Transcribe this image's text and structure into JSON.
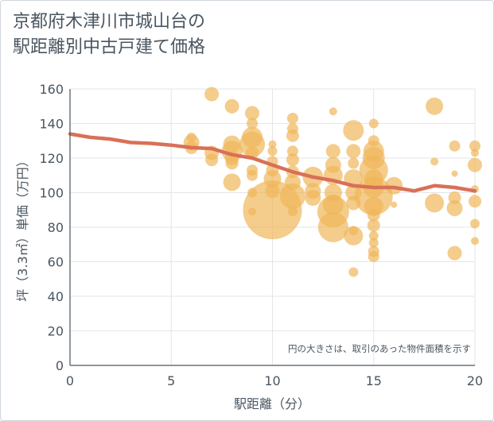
{
  "chart_data": {
    "type": "scatter",
    "title": [
      "京都府木津川市城山台の",
      "駅距離別中古戸建て価格"
    ],
    "xlabel": "駅距離（分）",
    "ylabel": "坪（3.3㎡）単価（万円）",
    "xlim": [
      0,
      20
    ],
    "ylim": [
      0,
      160
    ],
    "xticks": [
      0,
      5,
      10,
      15,
      20
    ],
    "yticks": [
      0,
      20,
      40,
      60,
      80,
      100,
      120,
      140,
      160
    ],
    "note": "円の大きさは、取引のあった物件面積を示す",
    "grid": true,
    "bubble_color": "#f0b75a",
    "line_color": "#d97058",
    "trend_line": [
      {
        "x": 0,
        "y": 134
      },
      {
        "x": 1,
        "y": 132
      },
      {
        "x": 2,
        "y": 131
      },
      {
        "x": 3,
        "y": 129
      },
      {
        "x": 4,
        "y": 128.5
      },
      {
        "x": 5,
        "y": 127.5
      },
      {
        "x": 6,
        "y": 126
      },
      {
        "x": 7,
        "y": 125.5
      },
      {
        "x": 8,
        "y": 122
      },
      {
        "x": 9,
        "y": 120
      },
      {
        "x": 10,
        "y": 116
      },
      {
        "x": 11,
        "y": 112
      },
      {
        "x": 12,
        "y": 109
      },
      {
        "x": 13,
        "y": 107
      },
      {
        "x": 14,
        "y": 104
      },
      {
        "x": 15,
        "y": 103
      },
      {
        "x": 16,
        "y": 103
      },
      {
        "x": 17,
        "y": 101
      },
      {
        "x": 18,
        "y": 104
      },
      {
        "x": 19,
        "y": 103
      },
      {
        "x": 20,
        "y": 101
      }
    ],
    "points": [
      {
        "x": 6,
        "y": 132,
        "s": 6
      },
      {
        "x": 6,
        "y": 129,
        "s": 10
      },
      {
        "x": 6,
        "y": 126,
        "s": 8
      },
      {
        "x": 7,
        "y": 157,
        "s": 9
      },
      {
        "x": 7,
        "y": 123,
        "s": 9
      },
      {
        "x": 7,
        "y": 119,
        "s": 8
      },
      {
        "x": 8,
        "y": 150,
        "s": 9
      },
      {
        "x": 8,
        "y": 128,
        "s": 11
      },
      {
        "x": 8,
        "y": 124,
        "s": 13
      },
      {
        "x": 8,
        "y": 120,
        "s": 9
      },
      {
        "x": 8,
        "y": 117,
        "s": 8
      },
      {
        "x": 8,
        "y": 106,
        "s": 11
      },
      {
        "x": 9,
        "y": 146,
        "s": 9
      },
      {
        "x": 9,
        "y": 140,
        "s": 7
      },
      {
        "x": 9,
        "y": 132,
        "s": 13
      },
      {
        "x": 9,
        "y": 128,
        "s": 16
      },
      {
        "x": 9,
        "y": 123,
        "s": 8
      },
      {
        "x": 9,
        "y": 113,
        "s": 7
      },
      {
        "x": 9,
        "y": 110,
        "s": 7
      },
      {
        "x": 9,
        "y": 100,
        "s": 6
      },
      {
        "x": 9,
        "y": 89,
        "s": 5
      },
      {
        "x": 10,
        "y": 90,
        "s": 37
      },
      {
        "x": 10,
        "y": 101,
        "s": 9
      },
      {
        "x": 10,
        "y": 108,
        "s": 11
      },
      {
        "x": 10,
        "y": 113,
        "s": 8
      },
      {
        "x": 10,
        "y": 118,
        "s": 7
      },
      {
        "x": 10,
        "y": 124,
        "s": 6
      },
      {
        "x": 10,
        "y": 128,
        "s": 5
      },
      {
        "x": 11,
        "y": 143,
        "s": 7
      },
      {
        "x": 11,
        "y": 137,
        "s": 7
      },
      {
        "x": 11,
        "y": 133,
        "s": 8
      },
      {
        "x": 11,
        "y": 124,
        "s": 7
      },
      {
        "x": 11,
        "y": 119,
        "s": 8
      },
      {
        "x": 11,
        "y": 112,
        "s": 8
      },
      {
        "x": 11,
        "y": 106,
        "s": 10
      },
      {
        "x": 11,
        "y": 98,
        "s": 16
      },
      {
        "x": 11,
        "y": 89,
        "s": 6
      },
      {
        "x": 12,
        "y": 109,
        "s": 13
      },
      {
        "x": 12,
        "y": 101,
        "s": 10
      },
      {
        "x": 12,
        "y": 97,
        "s": 10
      },
      {
        "x": 13,
        "y": 147,
        "s": 5
      },
      {
        "x": 13,
        "y": 124,
        "s": 9
      },
      {
        "x": 13,
        "y": 116,
        "s": 10
      },
      {
        "x": 13,
        "y": 110,
        "s": 12
      },
      {
        "x": 13,
        "y": 100,
        "s": 11
      },
      {
        "x": 13,
        "y": 93,
        "s": 13
      },
      {
        "x": 13,
        "y": 89,
        "s": 20
      },
      {
        "x": 13,
        "y": 80,
        "s": 19
      },
      {
        "x": 14,
        "y": 136,
        "s": 13
      },
      {
        "x": 14,
        "y": 124,
        "s": 9
      },
      {
        "x": 14,
        "y": 117,
        "s": 7
      },
      {
        "x": 14,
        "y": 108,
        "s": 12
      },
      {
        "x": 14,
        "y": 100,
        "s": 10
      },
      {
        "x": 14,
        "y": 94,
        "s": 9
      },
      {
        "x": 14,
        "y": 78,
        "s": 6
      },
      {
        "x": 14,
        "y": 75,
        "s": 12
      },
      {
        "x": 14,
        "y": 54,
        "s": 6
      },
      {
        "x": 15,
        "y": 140,
        "s": 6
      },
      {
        "x": 15,
        "y": 130,
        "s": 7
      },
      {
        "x": 15,
        "y": 124,
        "s": 13
      },
      {
        "x": 15,
        "y": 120,
        "s": 14
      },
      {
        "x": 15,
        "y": 113,
        "s": 18
      },
      {
        "x": 15,
        "y": 108,
        "s": 12
      },
      {
        "x": 15,
        "y": 103,
        "s": 13
      },
      {
        "x": 15,
        "y": 98,
        "s": 24
      },
      {
        "x": 15,
        "y": 92,
        "s": 12
      },
      {
        "x": 15,
        "y": 87,
        "s": 8
      },
      {
        "x": 15,
        "y": 81,
        "s": 8
      },
      {
        "x": 15,
        "y": 75,
        "s": 6
      },
      {
        "x": 15,
        "y": 71,
        "s": 6
      },
      {
        "x": 15,
        "y": 66,
        "s": 7
      },
      {
        "x": 15,
        "y": 63,
        "s": 7
      },
      {
        "x": 16,
        "y": 104,
        "s": 11
      },
      {
        "x": 16,
        "y": 93,
        "s": 4
      },
      {
        "x": 18,
        "y": 150,
        "s": 11
      },
      {
        "x": 18,
        "y": 118,
        "s": 5
      },
      {
        "x": 18,
        "y": 94,
        "s": 12
      },
      {
        "x": 19,
        "y": 127,
        "s": 7
      },
      {
        "x": 19,
        "y": 111,
        "s": 4
      },
      {
        "x": 19,
        "y": 97,
        "s": 8
      },
      {
        "x": 19,
        "y": 91,
        "s": 10
      },
      {
        "x": 19,
        "y": 65,
        "s": 9
      },
      {
        "x": 20,
        "y": 127,
        "s": 7
      },
      {
        "x": 20,
        "y": 123,
        "s": 5
      },
      {
        "x": 20,
        "y": 116,
        "s": 9
      },
      {
        "x": 20,
        "y": 102,
        "s": 5
      },
      {
        "x": 20,
        "y": 95,
        "s": 8
      },
      {
        "x": 20,
        "y": 82,
        "s": 6
      },
      {
        "x": 20,
        "y": 72,
        "s": 5
      }
    ]
  }
}
